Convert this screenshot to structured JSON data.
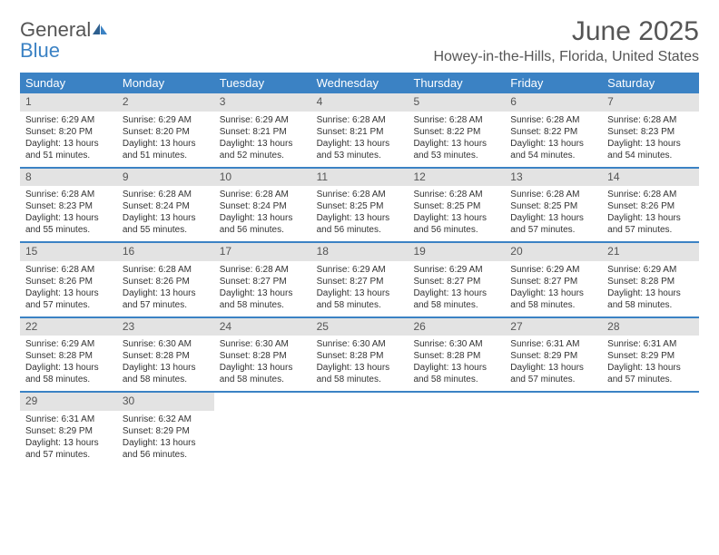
{
  "logo": {
    "text_general": "General",
    "text_blue": "Blue"
  },
  "title": "June 2025",
  "location": "Howey-in-the-Hills, Florida, United States",
  "colors": {
    "header_bg": "#3b82c4",
    "daynum_bg": "#e3e3e3",
    "text": "#333333",
    "title_text": "#555555"
  },
  "weekdays": [
    "Sunday",
    "Monday",
    "Tuesday",
    "Wednesday",
    "Thursday",
    "Friday",
    "Saturday"
  ],
  "weeks": [
    [
      {
        "n": "1",
        "sr": "Sunrise: 6:29 AM",
        "ss": "Sunset: 8:20 PM",
        "dl": "Daylight: 13 hours and 51 minutes."
      },
      {
        "n": "2",
        "sr": "Sunrise: 6:29 AM",
        "ss": "Sunset: 8:20 PM",
        "dl": "Daylight: 13 hours and 51 minutes."
      },
      {
        "n": "3",
        "sr": "Sunrise: 6:29 AM",
        "ss": "Sunset: 8:21 PM",
        "dl": "Daylight: 13 hours and 52 minutes."
      },
      {
        "n": "4",
        "sr": "Sunrise: 6:28 AM",
        "ss": "Sunset: 8:21 PM",
        "dl": "Daylight: 13 hours and 53 minutes."
      },
      {
        "n": "5",
        "sr": "Sunrise: 6:28 AM",
        "ss": "Sunset: 8:22 PM",
        "dl": "Daylight: 13 hours and 53 minutes."
      },
      {
        "n": "6",
        "sr": "Sunrise: 6:28 AM",
        "ss": "Sunset: 8:22 PM",
        "dl": "Daylight: 13 hours and 54 minutes."
      },
      {
        "n": "7",
        "sr": "Sunrise: 6:28 AM",
        "ss": "Sunset: 8:23 PM",
        "dl": "Daylight: 13 hours and 54 minutes."
      }
    ],
    [
      {
        "n": "8",
        "sr": "Sunrise: 6:28 AM",
        "ss": "Sunset: 8:23 PM",
        "dl": "Daylight: 13 hours and 55 minutes."
      },
      {
        "n": "9",
        "sr": "Sunrise: 6:28 AM",
        "ss": "Sunset: 8:24 PM",
        "dl": "Daylight: 13 hours and 55 minutes."
      },
      {
        "n": "10",
        "sr": "Sunrise: 6:28 AM",
        "ss": "Sunset: 8:24 PM",
        "dl": "Daylight: 13 hours and 56 minutes."
      },
      {
        "n": "11",
        "sr": "Sunrise: 6:28 AM",
        "ss": "Sunset: 8:25 PM",
        "dl": "Daylight: 13 hours and 56 minutes."
      },
      {
        "n": "12",
        "sr": "Sunrise: 6:28 AM",
        "ss": "Sunset: 8:25 PM",
        "dl": "Daylight: 13 hours and 56 minutes."
      },
      {
        "n": "13",
        "sr": "Sunrise: 6:28 AM",
        "ss": "Sunset: 8:25 PM",
        "dl": "Daylight: 13 hours and 57 minutes."
      },
      {
        "n": "14",
        "sr": "Sunrise: 6:28 AM",
        "ss": "Sunset: 8:26 PM",
        "dl": "Daylight: 13 hours and 57 minutes."
      }
    ],
    [
      {
        "n": "15",
        "sr": "Sunrise: 6:28 AM",
        "ss": "Sunset: 8:26 PM",
        "dl": "Daylight: 13 hours and 57 minutes."
      },
      {
        "n": "16",
        "sr": "Sunrise: 6:28 AM",
        "ss": "Sunset: 8:26 PM",
        "dl": "Daylight: 13 hours and 57 minutes."
      },
      {
        "n": "17",
        "sr": "Sunrise: 6:28 AM",
        "ss": "Sunset: 8:27 PM",
        "dl": "Daylight: 13 hours and 58 minutes."
      },
      {
        "n": "18",
        "sr": "Sunrise: 6:29 AM",
        "ss": "Sunset: 8:27 PM",
        "dl": "Daylight: 13 hours and 58 minutes."
      },
      {
        "n": "19",
        "sr": "Sunrise: 6:29 AM",
        "ss": "Sunset: 8:27 PM",
        "dl": "Daylight: 13 hours and 58 minutes."
      },
      {
        "n": "20",
        "sr": "Sunrise: 6:29 AM",
        "ss": "Sunset: 8:27 PM",
        "dl": "Daylight: 13 hours and 58 minutes."
      },
      {
        "n": "21",
        "sr": "Sunrise: 6:29 AM",
        "ss": "Sunset: 8:28 PM",
        "dl": "Daylight: 13 hours and 58 minutes."
      }
    ],
    [
      {
        "n": "22",
        "sr": "Sunrise: 6:29 AM",
        "ss": "Sunset: 8:28 PM",
        "dl": "Daylight: 13 hours and 58 minutes."
      },
      {
        "n": "23",
        "sr": "Sunrise: 6:30 AM",
        "ss": "Sunset: 8:28 PM",
        "dl": "Daylight: 13 hours and 58 minutes."
      },
      {
        "n": "24",
        "sr": "Sunrise: 6:30 AM",
        "ss": "Sunset: 8:28 PM",
        "dl": "Daylight: 13 hours and 58 minutes."
      },
      {
        "n": "25",
        "sr": "Sunrise: 6:30 AM",
        "ss": "Sunset: 8:28 PM",
        "dl": "Daylight: 13 hours and 58 minutes."
      },
      {
        "n": "26",
        "sr": "Sunrise: 6:30 AM",
        "ss": "Sunset: 8:28 PM",
        "dl": "Daylight: 13 hours and 58 minutes."
      },
      {
        "n": "27",
        "sr": "Sunrise: 6:31 AM",
        "ss": "Sunset: 8:29 PM",
        "dl": "Daylight: 13 hours and 57 minutes."
      },
      {
        "n": "28",
        "sr": "Sunrise: 6:31 AM",
        "ss": "Sunset: 8:29 PM",
        "dl": "Daylight: 13 hours and 57 minutes."
      }
    ],
    [
      {
        "n": "29",
        "sr": "Sunrise: 6:31 AM",
        "ss": "Sunset: 8:29 PM",
        "dl": "Daylight: 13 hours and 57 minutes."
      },
      {
        "n": "30",
        "sr": "Sunrise: 6:32 AM",
        "ss": "Sunset: 8:29 PM",
        "dl": "Daylight: 13 hours and 56 minutes."
      },
      null,
      null,
      null,
      null,
      null
    ]
  ]
}
